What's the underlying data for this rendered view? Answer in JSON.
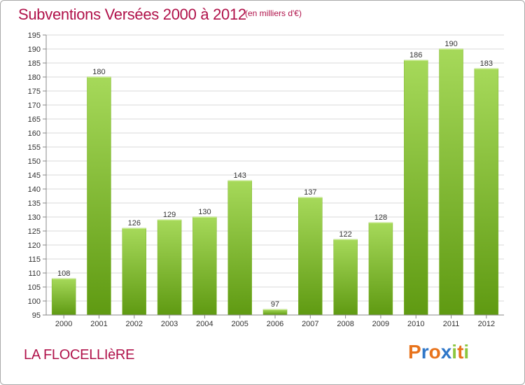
{
  "header": {
    "title": "Subventions Versées 2000 à 2012",
    "subtitle": "(en milliers d'€)"
  },
  "footer": {
    "commune": "LA FLOCELLIèRE",
    "logo_letters": [
      {
        "char": "P",
        "color": "#e8731c"
      },
      {
        "char": "r",
        "color": "#2f77c8"
      },
      {
        "char": "o",
        "color": "#e8731c"
      },
      {
        "char": "x",
        "color": "#2f77c8"
      },
      {
        "char": "i",
        "color": "#8cc63e"
      },
      {
        "char": "t",
        "color": "#e8731c"
      },
      {
        "char": "i",
        "color": "#8cc63e"
      }
    ]
  },
  "colors": {
    "title": "#b0124a",
    "bar_light": "#a6d95a",
    "bar_dark": "#5f9a12",
    "grid": "#d8d8d8",
    "axis": "#888888"
  },
  "chart_data": {
    "type": "bar",
    "title": "Subventions Versées 2000 à 2012",
    "subtitle": "(en milliers d'€)",
    "xlabel": "",
    "ylabel": "",
    "ylim": [
      95,
      195
    ],
    "ytick_step": 5,
    "grid": true,
    "categories": [
      "2000",
      "2001",
      "2002",
      "2003",
      "2004",
      "2005",
      "2006",
      "2007",
      "2008",
      "2009",
      "2010",
      "2011",
      "2012"
    ],
    "values": [
      108,
      180,
      126,
      129,
      130,
      143,
      97,
      137,
      122,
      128,
      186,
      190,
      183
    ]
  }
}
